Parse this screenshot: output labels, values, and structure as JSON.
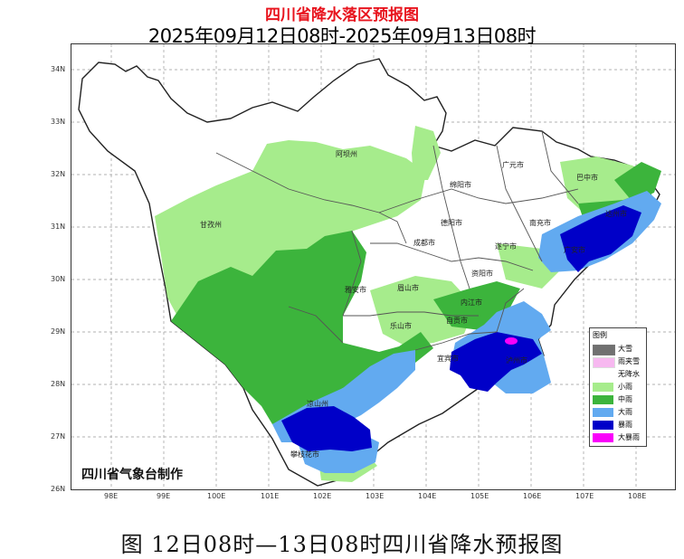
{
  "title": "四川省降水落区预报图",
  "subtitle": "2025年09月12日08时-2025年09月13日08时",
  "caption": "图   12日08时—13日08时四川省降水预报图",
  "agency": "四川省气象台制作",
  "axes": {
    "lat_labels": [
      "34N",
      "33N",
      "32N",
      "31N",
      "30N",
      "29N",
      "28N",
      "27N",
      "26N"
    ],
    "lon_labels": [
      "98E",
      "99E",
      "100E",
      "101E",
      "102E",
      "103E",
      "104E",
      "105E",
      "106E",
      "107E",
      "108E"
    ]
  },
  "cities": [
    "阿坝州",
    "广元市",
    "巴中市",
    "绵阳市",
    "甘孜州",
    "德阳市",
    "南充市",
    "成都市",
    "遂宁市",
    "达州市",
    "广安市",
    "资阳市",
    "雅安市",
    "眉山市",
    "内江市",
    "乐山市",
    "自贡市",
    "宜宾市",
    "泸州市",
    "凉山州",
    "攀枝花市"
  ],
  "legend": {
    "title": "图例",
    "items": [
      {
        "label": "大雪",
        "color": "#707070"
      },
      {
        "label": "雨夹雪",
        "color": "#f7b8f0"
      },
      {
        "label": "无降水",
        "color": "#ffffff"
      },
      {
        "label": "小雨",
        "color": "#a6ec8c"
      },
      {
        "label": "中雨",
        "color": "#3cb43c"
      },
      {
        "label": "大雨",
        "color": "#62aaf0"
      },
      {
        "label": "暴雨",
        "color": "#0000c8"
      },
      {
        "label": "大暴雨",
        "color": "#fa00fa"
      }
    ]
  }
}
